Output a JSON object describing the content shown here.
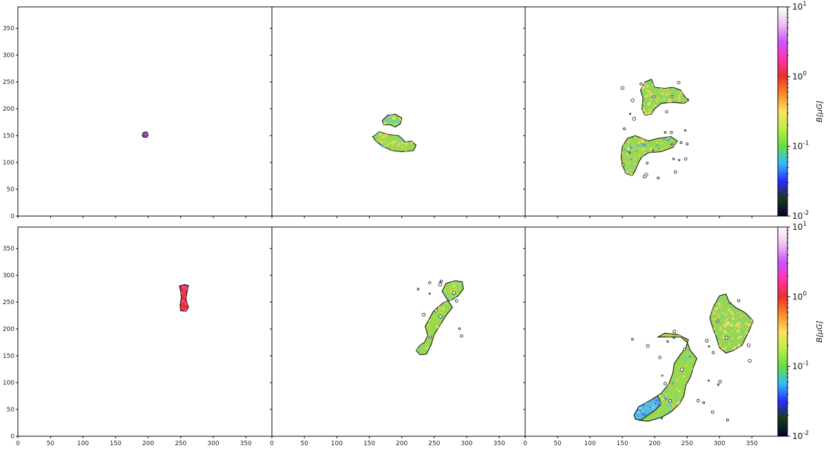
{
  "chart_data": [
    {
      "type": "heatmap",
      "panel": "row1-col1",
      "title": "",
      "xlim": [
        0,
        390
      ],
      "ylim": [
        0,
        390
      ],
      "yticks": [
        0,
        50,
        100,
        150,
        200,
        250,
        300,
        350
      ],
      "show_yticklabels": true,
      "xticks": [
        0,
        50,
        100,
        150,
        200,
        250,
        300,
        350
      ],
      "show_xticklabels": false,
      "blobs": [
        {
          "center": [
            195,
            151
          ],
          "extent": [
            191,
            199,
            147,
            156
          ],
          "dominant_color": "#e8322a"
        }
      ]
    },
    {
      "type": "heatmap",
      "panel": "row1-col2",
      "title": "",
      "xlim": [
        0,
        390
      ],
      "ylim": [
        0,
        390
      ],
      "show_yticklabels": false,
      "show_xticklabels": false,
      "blobs": [
        {
          "center": [
            200,
            140
          ],
          "extent": [
            155,
            220,
            120,
            190
          ],
          "dominant_color": "#8fd65a"
        }
      ]
    },
    {
      "type": "heatmap",
      "panel": "row1-col3",
      "title": "",
      "xlim": [
        0,
        390
      ],
      "ylim": [
        0,
        390
      ],
      "show_yticklabels": false,
      "show_xticklabels": false,
      "blobs": [
        {
          "center": [
            205,
            175
          ],
          "extent": [
            150,
            255,
            70,
            255
          ],
          "dominant_color": "#8fd65a"
        }
      ]
    },
    {
      "type": "heatmap",
      "panel": "row2-col1",
      "title": "",
      "xlim": [
        0,
        390
      ],
      "ylim": [
        0,
        390
      ],
      "yticks": [
        0,
        50,
        100,
        150,
        200,
        250,
        300,
        350
      ],
      "show_yticklabels": true,
      "xticks": [
        0,
        50,
        100,
        150,
        200,
        250,
        300,
        350
      ],
      "show_xticklabels": true,
      "blobs": [
        {
          "center": [
            255,
            258
          ],
          "extent": [
            248,
            262,
            232,
            283
          ],
          "dominant_color": "#e8322a"
        }
      ]
    },
    {
      "type": "heatmap",
      "panel": "row2-col2",
      "title": "",
      "xlim": [
        0,
        390
      ],
      "ylim": [
        0,
        390
      ],
      "xticks": [
        0,
        50,
        100,
        150,
        200,
        250,
        300,
        350
      ],
      "show_xticklabels": true,
      "show_yticklabels": false,
      "blobs": [
        {
          "center": [
            255,
            220
          ],
          "extent": [
            225,
            295,
            155,
            290
          ],
          "dominant_color": "#8fd65a"
        }
      ]
    },
    {
      "type": "heatmap",
      "panel": "row2-col3",
      "title": "",
      "xlim": [
        0,
        390
      ],
      "ylim": [
        0,
        390
      ],
      "xticks": [
        0,
        50,
        100,
        150,
        200,
        250,
        300,
        350
      ],
      "show_xticklabels": true,
      "show_yticklabels": false,
      "blobs": [
        {
          "center": [
            250,
            120
          ],
          "extent": [
            165,
            355,
            25,
            265
          ],
          "dominant_color": "#8fd65a"
        }
      ]
    }
  ],
  "colorbar": {
    "label": "B[μG]",
    "scale": "log",
    "range": [
      0.01,
      10
    ],
    "tick_labels": [
      "10^1",
      "10^0",
      "10^-1",
      "10^-2"
    ],
    "stops": [
      "#000033",
      "#1a3a1a",
      "#2a2aff",
      "#33bbff",
      "#66dd44",
      "#bbee44",
      "#ffe066",
      "#ff8a2a",
      "#e8322a",
      "#ff33aa",
      "#cc55ff",
      "#f0c0f0",
      "#ffffff"
    ]
  }
}
